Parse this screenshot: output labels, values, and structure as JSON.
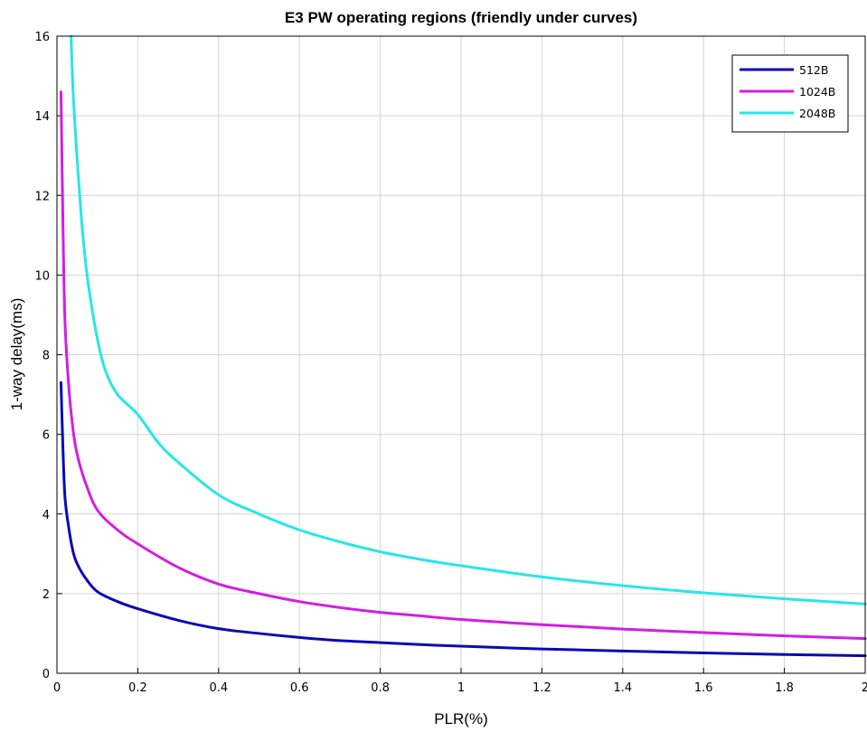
{
  "chart_data": {
    "type": "line",
    "title": "E3 PW operating regions (friendly under curves)",
    "xlabel": "PLR(%)",
    "ylabel": "1-way delay(ms)",
    "xlim": [
      0,
      2
    ],
    "ylim": [
      0,
      16
    ],
    "xticks": [
      0,
      0.2,
      0.4,
      0.6,
      0.8,
      1,
      1.2,
      1.4,
      1.6,
      1.8,
      2
    ],
    "xtick_labels": [
      "0",
      "0.2",
      "0.4",
      "0.6",
      "0.8",
      "1",
      "1.2",
      "1.4",
      "1.6",
      "1.8",
      "2"
    ],
    "yticks": [
      0,
      2,
      4,
      6,
      8,
      10,
      12,
      14,
      16
    ],
    "ytick_labels": [
      "0",
      "2",
      "4",
      "6",
      "8",
      "10",
      "12",
      "14",
      "16"
    ],
    "grid": true,
    "legend_position": "top-right",
    "series": [
      {
        "name": "512B",
        "color": "#0a0ab4",
        "x": [
          0.01,
          0.015,
          0.02,
          0.03,
          0.04,
          0.05,
          0.07,
          0.1,
          0.15,
          0.2,
          0.3,
          0.4,
          0.5,
          0.6,
          0.7,
          0.8,
          0.9,
          1.0,
          1.2,
          1.4,
          1.6,
          1.8,
          2.0
        ],
        "y": [
          7.3,
          5.6,
          4.4,
          3.6,
          3.05,
          2.75,
          2.4,
          2.05,
          1.8,
          1.62,
          1.33,
          1.12,
          1.0,
          0.9,
          0.82,
          0.77,
          0.72,
          0.68,
          0.61,
          0.56,
          0.51,
          0.47,
          0.44
        ]
      },
      {
        "name": "1024B",
        "color": "#d21ee1",
        "x": [
          0.01,
          0.015,
          0.02,
          0.03,
          0.04,
          0.05,
          0.07,
          0.1,
          0.15,
          0.2,
          0.3,
          0.4,
          0.5,
          0.6,
          0.7,
          0.8,
          0.9,
          1.0,
          1.2,
          1.4,
          1.6,
          1.8,
          2.0
        ],
        "y": [
          14.6,
          11.2,
          8.8,
          7.1,
          6.1,
          5.5,
          4.8,
          4.1,
          3.6,
          3.25,
          2.66,
          2.24,
          2.0,
          1.8,
          1.65,
          1.53,
          1.44,
          1.35,
          1.22,
          1.11,
          1.02,
          0.94,
          0.87
        ]
      },
      {
        "name": "2048B",
        "color": "#28e6e6",
        "x": [
          0.035,
          0.04,
          0.05,
          0.06,
          0.07,
          0.08,
          0.1,
          0.12,
          0.15,
          0.2,
          0.25,
          0.3,
          0.4,
          0.5,
          0.6,
          0.7,
          0.8,
          0.9,
          1.0,
          1.2,
          1.4,
          1.6,
          1.8,
          2.0
        ],
        "y": [
          16.0,
          14.6,
          12.9,
          11.5,
          10.4,
          9.6,
          8.4,
          7.6,
          7.0,
          6.5,
          5.8,
          5.3,
          4.48,
          4.0,
          3.6,
          3.3,
          3.05,
          2.86,
          2.7,
          2.42,
          2.2,
          2.02,
          1.87,
          1.74
        ]
      }
    ]
  }
}
